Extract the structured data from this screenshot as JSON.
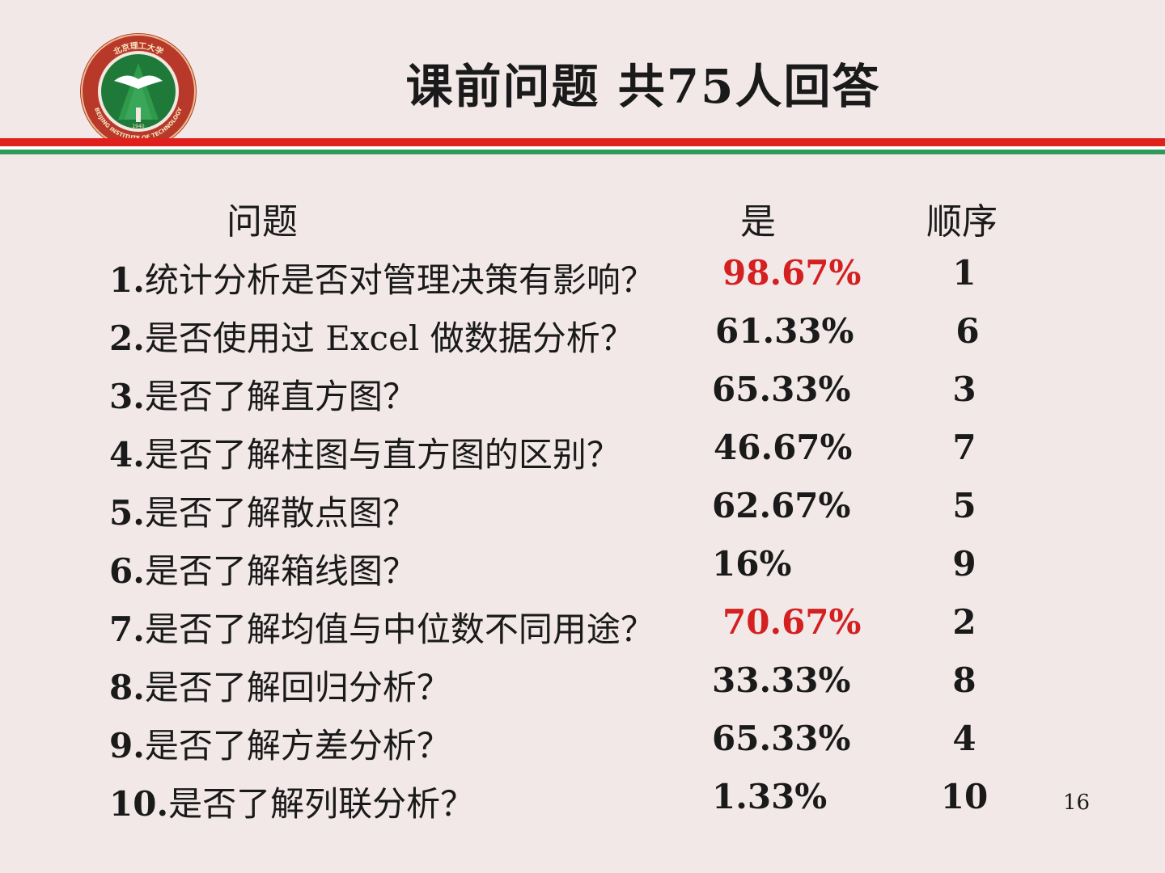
{
  "title": "课前问题  共75人回答",
  "header": {
    "question": "问题",
    "yes": "是",
    "order": "顺序"
  },
  "rows": [
    {
      "num": "1.",
      "text": "统计分析是否对管理决策有影响？",
      "pct": "98.67%",
      "order": "1",
      "highlight": true
    },
    {
      "num": "2.",
      "text": "是否使用过 Excel 做数据分析？",
      "pct": "61.33%",
      "order": "6",
      "highlight": false
    },
    {
      "num": "3.",
      "text": "是否了解直方图？",
      "pct": "65.33%",
      "order": "3",
      "highlight": false
    },
    {
      "num": "4.",
      "text": "是否了解柱图与直方图的区别？",
      "pct": "46.67%",
      "order": "7",
      "highlight": false
    },
    {
      "num": "5.",
      "text": "是否了解散点图？",
      "pct": "62.67%",
      "order": "5",
      "highlight": false
    },
    {
      "num": "6.",
      "text": "是否了解箱线图？",
      "pct": "16%",
      "order": "9",
      "highlight": false
    },
    {
      "num": "7.",
      "text": "是否了解均值与中位数不同用途？",
      "pct": "70.67%",
      "order": "2",
      "highlight": true
    },
    {
      "num": "8.",
      "text": "是否了解回归分析？",
      "pct": "33.33%",
      "order": "8",
      "highlight": false
    },
    {
      "num": "9.",
      "text": "是否了解方差分析？",
      "pct": "65.33%",
      "order": "4",
      "highlight": false
    },
    {
      "num": "10.",
      "text": "是否了解列联分析？",
      "pct": "1.33%",
      "order": "10",
      "highlight": false
    }
  ],
  "page_number": "16",
  "logo": {
    "text_top": "北京理工大学",
    "text_bottom": "BEIJING INSTITUTE OF TECHNOLOGY",
    "year": "1940"
  },
  "colors": {
    "accent_red": "#d42020",
    "stripe_red": "#e0201c",
    "stripe_green": "#2f9a5a",
    "logo_green": "#1f7a3a"
  }
}
